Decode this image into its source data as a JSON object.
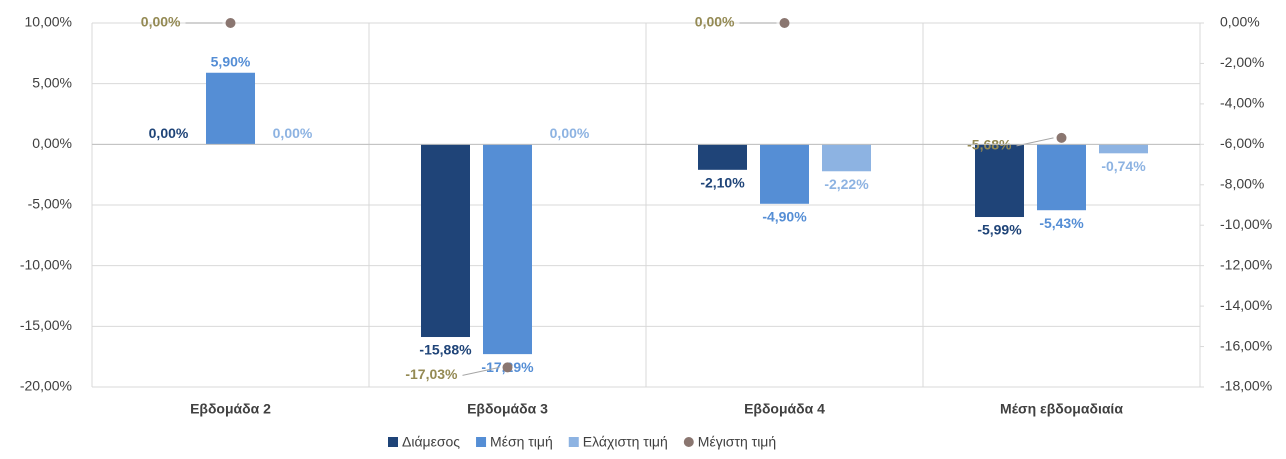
{
  "chart_data": {
    "type": "bar",
    "categories": [
      "Εβδομάδα 2",
      "Εβδομάδα 3",
      "Εβδομάδα 4",
      "Μέση εβδομαδιαία"
    ],
    "series": [
      {
        "name": "Διάμεσος",
        "color": "#1f4478",
        "values": [
          0,
          -15.88,
          -2.1,
          -5.99
        ],
        "value_labels": [
          "0,00%",
          "-15,88%",
          "-2,10%",
          "-5,99%"
        ]
      },
      {
        "name": "Μέση τιμή",
        "color": "#558ed5",
        "values": [
          5.9,
          -17.29,
          -4.9,
          -5.43
        ],
        "value_labels": [
          "5,90%",
          "-17,29%",
          "-4,90%",
          "-5,43%"
        ]
      },
      {
        "name": "Ελάχιστη τιμή",
        "color": "#8db3e2",
        "values": [
          0,
          0,
          -2.22,
          -0.74
        ],
        "value_labels": [
          "0,00%",
          "0,00%",
          "-2,22%",
          "-0,74%"
        ]
      },
      {
        "name": "Μέγιστη τιμή",
        "color": "#8a7670",
        "type": "scatter",
        "axis": "y2",
        "label_color": "#948a54",
        "values": [
          0,
          -17.03,
          0,
          -5.68
        ],
        "value_labels": [
          "0,00%",
          "-17,03%",
          "0,00%",
          "-5,68%"
        ]
      }
    ],
    "ylim": [
      -20,
      10
    ],
    "yticks": [
      {
        "value": 10,
        "label": "10,00%"
      },
      {
        "value": 5,
        "label": "5,00%"
      },
      {
        "value": 0,
        "label": "0,00%"
      },
      {
        "value": -5,
        "label": "-5,00%"
      },
      {
        "value": -10,
        "label": "-10,00%"
      },
      {
        "value": -15,
        "label": "-15,00%"
      },
      {
        "value": -20,
        "label": "-20,00%"
      }
    ],
    "y2lim": [
      -18,
      0
    ],
    "y2ticks": [
      {
        "value": 0,
        "label": "0,00%"
      },
      {
        "value": -2,
        "label": "-2,00%"
      },
      {
        "value": -4,
        "label": "-4,00%"
      },
      {
        "value": -6,
        "label": "-6,00%"
      },
      {
        "value": -8,
        "label": "-8,00%"
      },
      {
        "value": -10,
        "label": "-10,00%"
      },
      {
        "value": -12,
        "label": "-12,00%"
      },
      {
        "value": -14,
        "label": "-14,00%"
      },
      {
        "value": -16,
        "label": "-16,00%"
      },
      {
        "value": -18,
        "label": "-18,00%"
      }
    ],
    "grid": true,
    "legend": "bottom"
  }
}
